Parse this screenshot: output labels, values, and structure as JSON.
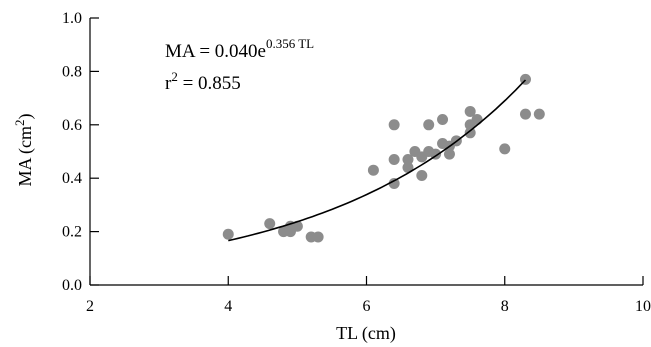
{
  "chart_data": {
    "type": "scatter",
    "xlabel": "TL (cm)",
    "ylabel_main": "MA (cm",
    "ylabel_sup": "2",
    "ylabel_close": ")",
    "xlim": [
      2,
      10
    ],
    "ylim": [
      0,
      1.0
    ],
    "x_ticks": [
      2,
      4,
      6,
      8,
      10
    ],
    "y_ticks": [
      0.0,
      0.2,
      0.4,
      0.6,
      0.8,
      1.0
    ],
    "x_tick_labels": [
      "2",
      "4",
      "6",
      "8",
      "10"
    ],
    "y_tick_labels": [
      "0.0",
      "0.2",
      "0.4",
      "0.6",
      "0.8",
      "1.0"
    ],
    "grid": false,
    "equation_text": "MA = 0.040e",
    "equation_exponent": "0.356 TL",
    "r2_label": "r",
    "r2_sup": "2",
    "r2_value_text": " = 0.855",
    "fit": {
      "a": 0.04,
      "b": 0.356,
      "x_range": [
        4.0,
        8.3
      ]
    },
    "marker_color": "#8c8c8c",
    "line_color": "#000000",
    "series": [
      {
        "values": [
          [
            4.0,
            0.19
          ],
          [
            4.6,
            0.23
          ],
          [
            4.8,
            0.2
          ],
          [
            4.9,
            0.22
          ],
          [
            4.9,
            0.2
          ],
          [
            5.0,
            0.22
          ],
          [
            5.2,
            0.18
          ],
          [
            5.3,
            0.18
          ],
          [
            6.1,
            0.43
          ],
          [
            6.4,
            0.6
          ],
          [
            6.4,
            0.47
          ],
          [
            6.4,
            0.38
          ],
          [
            6.6,
            0.47
          ],
          [
            6.6,
            0.44
          ],
          [
            6.7,
            0.5
          ],
          [
            6.8,
            0.41
          ],
          [
            6.8,
            0.48
          ],
          [
            6.9,
            0.5
          ],
          [
            6.9,
            0.6
          ],
          [
            7.0,
            0.49
          ],
          [
            7.1,
            0.62
          ],
          [
            7.1,
            0.53
          ],
          [
            7.2,
            0.49
          ],
          [
            7.2,
            0.52
          ],
          [
            7.3,
            0.54
          ],
          [
            7.5,
            0.65
          ],
          [
            7.5,
            0.6
          ],
          [
            7.5,
            0.57
          ],
          [
            7.6,
            0.62
          ],
          [
            8.0,
            0.51
          ],
          [
            8.3,
            0.77
          ],
          [
            8.3,
            0.64
          ],
          [
            8.5,
            0.64
          ]
        ]
      }
    ]
  }
}
